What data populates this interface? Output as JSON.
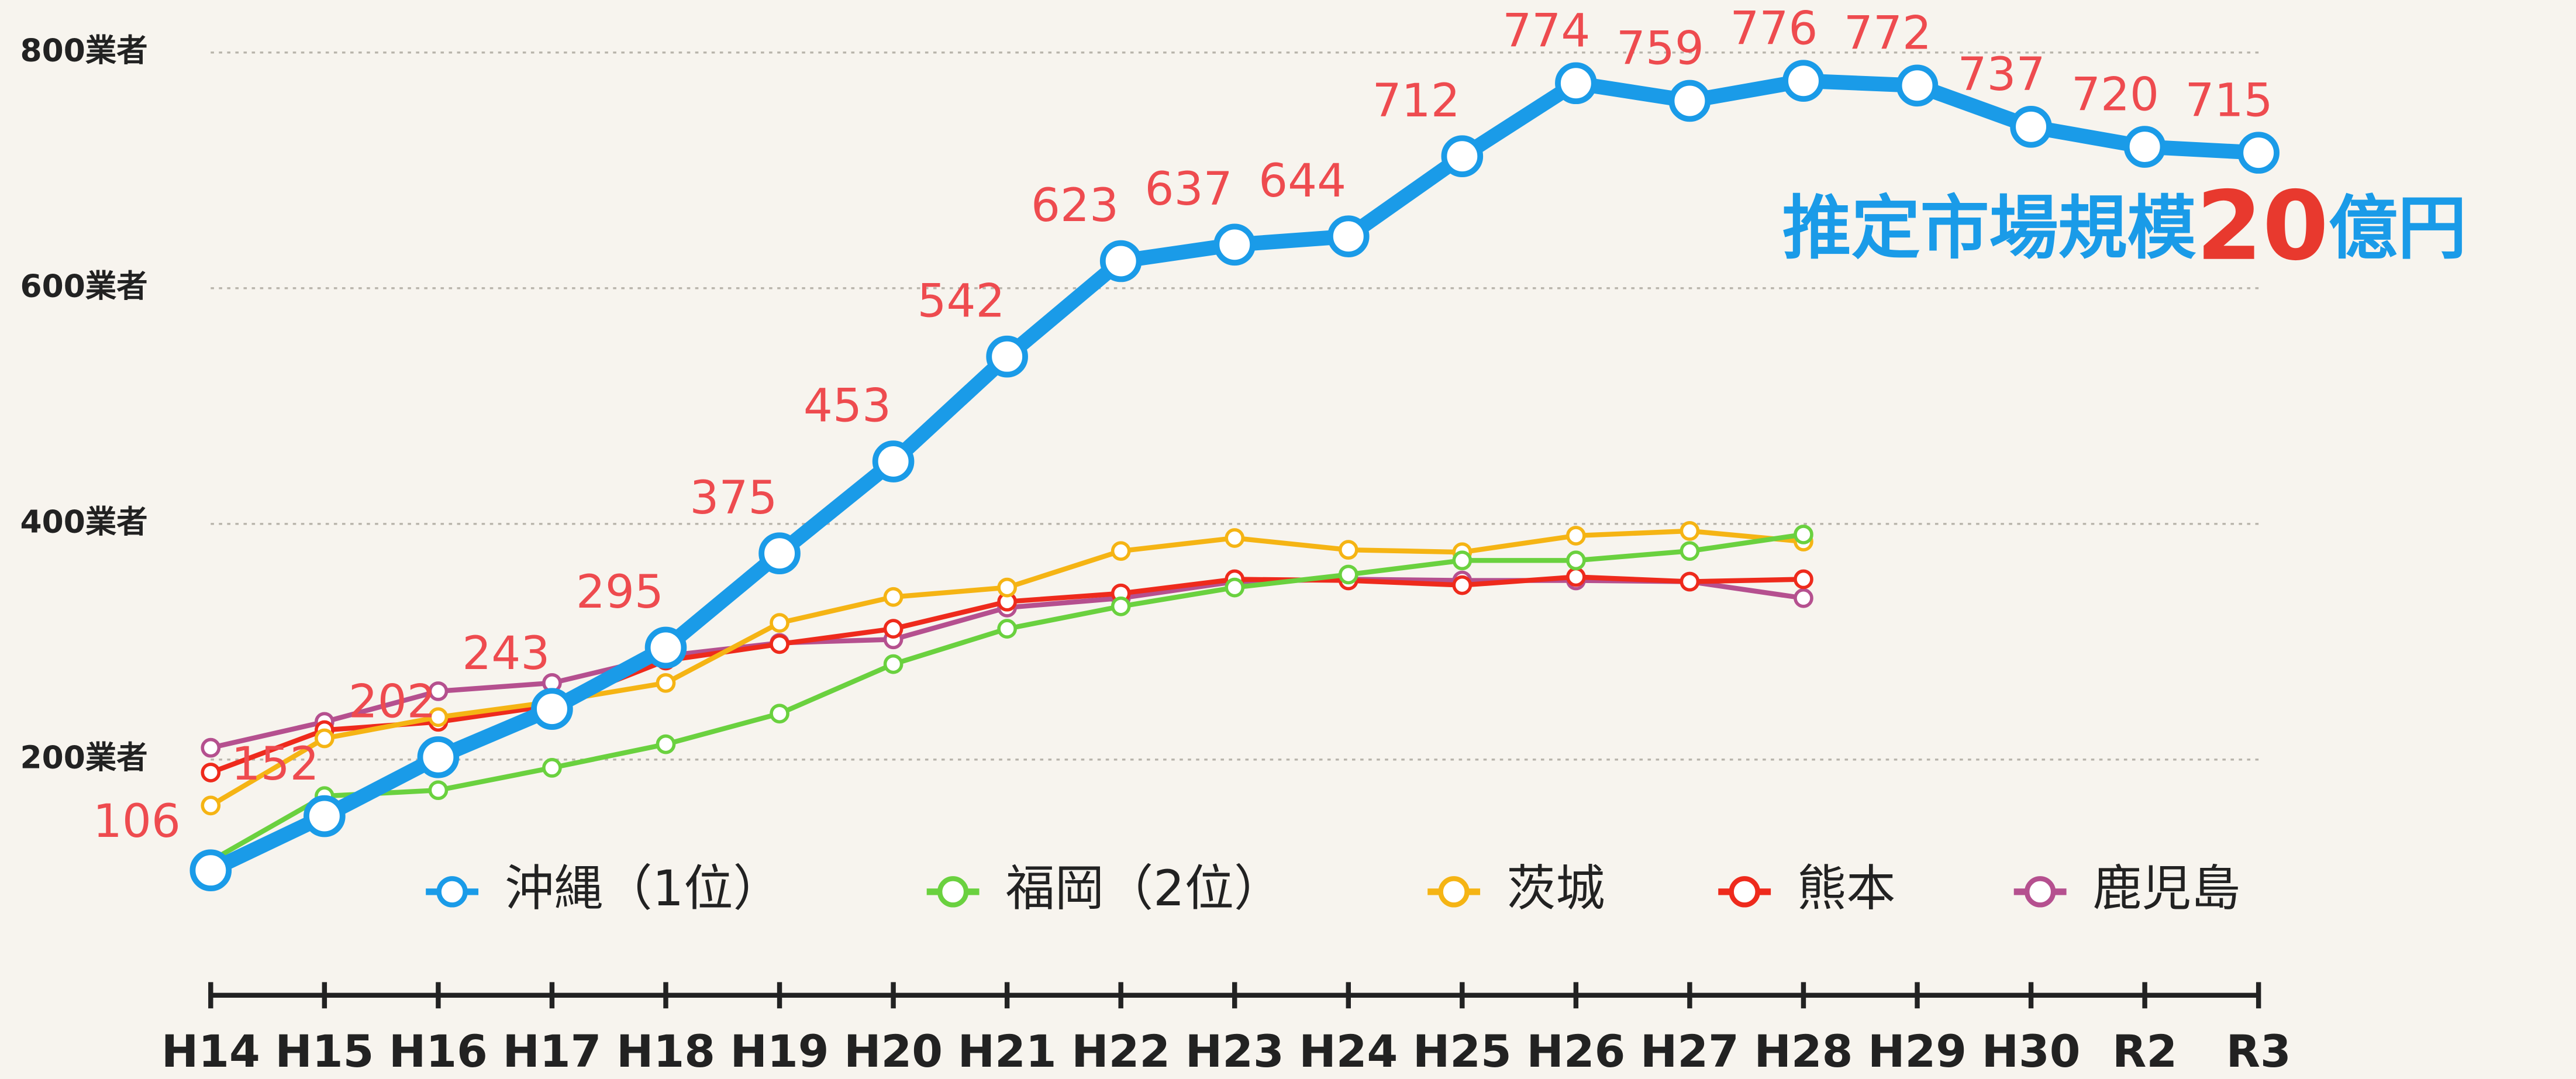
{
  "chart_data": {
    "type": "line",
    "categories": [
      "H14",
      "H15",
      "H16",
      "H17",
      "H18",
      "H19",
      "H20",
      "H21",
      "H22",
      "H23",
      "H24",
      "H25",
      "H26",
      "H27",
      "H28",
      "H29",
      "H30",
      "R2",
      "R3"
    ],
    "series": [
      {
        "name": "沖縄（1位）",
        "color": "#1a9be8",
        "values": [
          106,
          152,
          202,
          243,
          295,
          375,
          453,
          542,
          623,
          637,
          644,
          712,
          774,
          759,
          776,
          772,
          737,
          720,
          715
        ]
      },
      {
        "name": "福岡（2位）",
        "color": "#6ad13f",
        "values": [
          114,
          169,
          174,
          193,
          213,
          239,
          281,
          311,
          330,
          346,
          357,
          369,
          369,
          377,
          391,
          null,
          null,
          null,
          null
        ]
      },
      {
        "name": "茨城",
        "color": "#f5b414",
        "values": [
          161,
          218,
          236,
          249,
          265,
          316,
          338,
          346,
          377,
          388,
          378,
          376,
          390,
          394,
          385,
          null,
          null,
          null,
          null
        ]
      },
      {
        "name": "熊本",
        "color": "#ee2a1c",
        "values": [
          189,
          225,
          232,
          246,
          284,
          298,
          311,
          334,
          341,
          353,
          352,
          348,
          355,
          351,
          353,
          null,
          null,
          null,
          null
        ]
      },
      {
        "name": "鹿児島",
        "color": "#b5508f",
        "values": [
          210,
          232,
          258,
          265,
          288,
          299,
          302,
          329,
          337,
          351,
          353,
          352,
          352,
          351,
          337,
          null,
          null,
          null,
          null
        ]
      }
    ],
    "ylim": [
      0,
      800
    ],
    "yticks": [
      {
        "value": 200,
        "label": "200業者"
      },
      {
        "value": 400,
        "label": "400業者"
      },
      {
        "value": 600,
        "label": "600業者"
      },
      {
        "value": 800,
        "label": "800業者"
      }
    ],
    "grid": true,
    "value_label_color": "#ee4b4f",
    "annotation": [
      {
        "text": "推定市場規模",
        "color": "#1a9be8"
      },
      {
        "text": "20",
        "color": "#e8392e"
      },
      {
        "text": "億円",
        "color": "#1a9be8"
      }
    ]
  }
}
